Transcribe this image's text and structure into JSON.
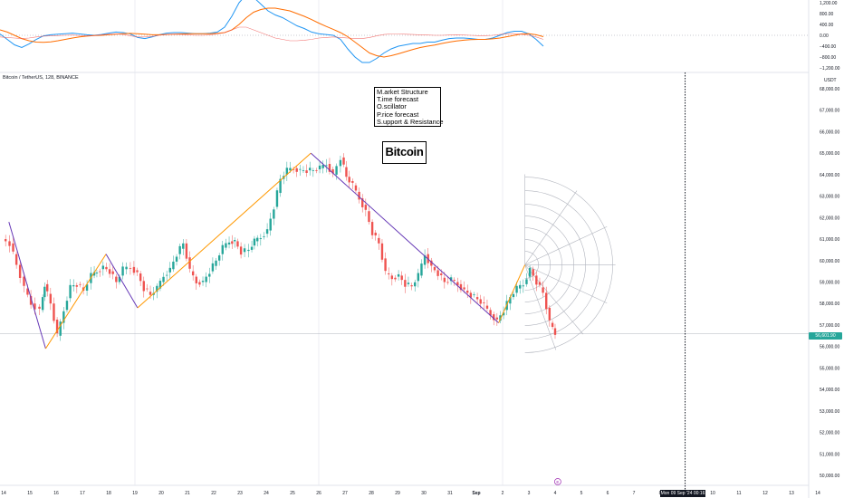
{
  "symbol_title": "Bitcoin / TetherUS, 128, BINANCE",
  "price_unit": "USDT",
  "notes": [
    "M.arket Structure",
    "T.ime forecast",
    "O.scillator",
    "P.rice forecast",
    "S.upport & Resistance"
  ],
  "title_box": "Bitcoin",
  "current_price_label": "56,601.90",
  "time_tag": "Mon 09 Sep '24  00:16",
  "event_marker": "E",
  "colors": {
    "up": "#26a69a",
    "down": "#ef5350",
    "macd": "#2196f3",
    "signal": "#ff6d00",
    "zigzag_up": "#ff9800",
    "zigzag_down": "#673ab7",
    "grid": "#e0e3eb",
    "fan": "#b2b5be",
    "text": "#131722",
    "hist": "#ef5350"
  },
  "chart_data": [
    {
      "type": "line",
      "y_ticks": [
        "1,200.00",
        "800.00",
        "400.00",
        "0.00",
        "−400.00",
        "−800.00",
        "−1,200.00"
      ],
      "y_tick_values": [
        1200,
        800,
        400,
        0,
        -400,
        -800,
        -1200
      ],
      "ylim": [
        -1350,
        1350
      ],
      "x": [
        0,
        8,
        16,
        24,
        32,
        40,
        48,
        56,
        64,
        72,
        80,
        88,
        96,
        104,
        112,
        120,
        128,
        136,
        144,
        152,
        160,
        168,
        176,
        184,
        192,
        200,
        208,
        216,
        224,
        232,
        240,
        248,
        256,
        264,
        272,
        280,
        288,
        296,
        304,
        312,
        320,
        328,
        336,
        344,
        352,
        360,
        368,
        376,
        384,
        392,
        400,
        408,
        416,
        424,
        432,
        440,
        448,
        456,
        464,
        472,
        480,
        488,
        496,
        504,
        512,
        520,
        528,
        536,
        544,
        552,
        560,
        568,
        576,
        584,
        592,
        600
      ],
      "series": [
        {
          "values": [
            50,
            -150,
            -350,
            -450,
            -320,
            -150,
            -20,
            20,
            40,
            60,
            80,
            50,
            20,
            0,
            30,
            80,
            120,
            100,
            50,
            -80,
            -120,
            -60,
            20,
            80,
            100,
            100,
            80,
            60,
            60,
            80,
            120,
            300,
            700,
            1200,
            1500,
            1400,
            1150,
            900,
            750,
            650,
            500,
            350,
            250,
            120,
            60,
            30,
            0,
            -150,
            -500,
            -800,
            -1000,
            -1000,
            -850,
            -650,
            -500,
            -400,
            -350,
            -300,
            -300,
            -250,
            -250,
            -180,
            -120,
            -100,
            -100,
            -120,
            -150,
            -150,
            -100,
            0,
            100,
            150,
            150,
            50,
            -150,
            -400
          ]
        },
        {
          "values": [
            200,
            120,
            0,
            -120,
            -200,
            -250,
            -260,
            -240,
            -200,
            -150,
            -100,
            -60,
            -30,
            -10,
            0,
            20,
            40,
            60,
            70,
            60,
            40,
            20,
            20,
            30,
            40,
            50,
            60,
            60,
            60,
            60,
            70,
            100,
            200,
            400,
            650,
            850,
            950,
            1000,
            1000,
            950,
            900,
            800,
            700,
            580,
            450,
            330,
            220,
            100,
            -50,
            -250,
            -450,
            -650,
            -750,
            -800,
            -750,
            -680,
            -600,
            -520,
            -450,
            -400,
            -360,
            -300,
            -250,
            -210,
            -180,
            -160,
            -150,
            -150,
            -130,
            -100,
            -50,
            0,
            50,
            60,
            20,
            -50
          ]
        },
        {
          "values": [
            -60,
            -80,
            -100,
            -120,
            -100,
            -60,
            -30,
            -20,
            -10,
            0,
            10,
            -10,
            -20,
            -10,
            20,
            40,
            50,
            30,
            -20,
            -60,
            -60,
            -40,
            0,
            30,
            40,
            30,
            20,
            0,
            0,
            20,
            50,
            100,
            200,
            300,
            300,
            200,
            100,
            0,
            -100,
            -150,
            -200,
            -200,
            -180,
            -150,
            -100,
            -80,
            -60,
            -80,
            -100,
            -120,
            -120,
            -80,
            -20,
            30,
            50,
            50,
            40,
            30,
            20,
            10,
            0,
            0,
            10,
            20,
            10,
            0,
            -10,
            -10,
            0,
            30,
            60,
            60,
            40,
            0,
            -60,
            -150
          ]
        }
      ]
    },
    {
      "type": "candlestick",
      "y_ticks": [
        "68,000.00",
        "67,000.00",
        "66,000.00",
        "65,000.00",
        "64,000.00",
        "63,000.00",
        "62,000.00",
        "61,000.00",
        "60,000.00",
        "59,000.00",
        "58,000.00",
        "57,000.00",
        "56,000.00",
        "55,000.00",
        "54,000.00",
        "53,000.00",
        "52,000.00",
        "51,000.00",
        "50,000.00"
      ],
      "y_tick_values": [
        68000,
        67000,
        66000,
        65000,
        64000,
        63000,
        62000,
        61000,
        60000,
        59000,
        58000,
        57000,
        56000,
        55000,
        54000,
        53000,
        52000,
        51000,
        50000
      ],
      "ylim": [
        49500,
        68600
      ],
      "x_ticks": [
        "14",
        "15",
        "16",
        "17",
        "18",
        "19",
        "20",
        "21",
        "22",
        "23",
        "24",
        "25",
        "26",
        "27",
        "28",
        "29",
        "30",
        "31",
        "Sep",
        "2",
        "3",
        "4",
        "5",
        "6",
        "7",
        "8",
        "9",
        "10",
        "11",
        "12",
        "13",
        "14"
      ],
      "x_tick_days": [
        0,
        1,
        2,
        3,
        4,
        5,
        6,
        7,
        8,
        9,
        10,
        11,
        12,
        13,
        14,
        15,
        16,
        17,
        18,
        19,
        20,
        21,
        22,
        23,
        24,
        25,
        26,
        27,
        28,
        29,
        30,
        31
      ],
      "close_path_days": [
        0,
        0.3,
        0.55,
        0.85,
        1.1,
        1.45,
        1.6,
        1.85,
        2.1,
        2.35,
        2.6,
        2.85,
        3.1,
        3.4,
        3.6,
        3.85,
        4.1,
        4.35,
        4.6,
        4.9,
        5.15,
        5.4,
        5.65,
        5.9,
        6.15,
        6.4,
        6.65,
        6.9,
        7.15,
        7.4,
        7.65,
        7.9,
        8.15,
        8.4,
        8.65,
        8.85,
        9.1,
        9.4,
        9.6,
        9.85,
        10.1,
        10.35,
        10.6,
        10.85,
        11.1,
        11.35,
        11.6,
        11.85,
        12.1,
        12.35,
        12.6,
        12.9,
        13.1,
        13.35,
        13.6,
        13.85,
        14.1,
        14.35,
        14.6,
        14.85,
        15.1,
        15.35,
        15.6,
        15.85,
        16.1,
        16.35,
        16.6,
        16.85,
        17.1,
        17.35,
        17.6,
        17.85,
        18.1,
        18.35,
        18.6,
        18.85,
        19.1,
        19.35,
        19.6,
        19.85,
        20.1,
        20.35,
        20.6,
        20.85,
        21.05
      ],
      "close_path": [
        61000,
        60800,
        59800,
        58700,
        58000,
        57700,
        58900,
        58000,
        56500,
        57700,
        58800,
        58900,
        58600,
        59300,
        59500,
        59700,
        59500,
        59000,
        59600,
        59700,
        59400,
        58700,
        58400,
        58700,
        59300,
        59600,
        60300,
        60800,
        59500,
        59000,
        59000,
        59500,
        60000,
        60600,
        60900,
        60900,
        60400,
        60500,
        60900,
        61100,
        61400,
        62500,
        63800,
        64200,
        64300,
        64200,
        64200,
        64200,
        64300,
        64500,
        64000,
        64800,
        63900,
        63500,
        62900,
        62300,
        61300,
        60800,
        59400,
        59200,
        59300,
        58900,
        58800,
        59300,
        60300,
        59700,
        59400,
        59000,
        59100,
        58900,
        58600,
        58400,
        58200,
        57900,
        57500,
        57200,
        57700,
        58300,
        58700,
        58900,
        59600,
        59000,
        58500,
        57100,
        56600
      ],
      "zigzag_days": [
        0.2,
        1.6,
        3.9,
        5.1,
        11.7,
        18.85,
        19.85
      ],
      "zigzag_prices": [
        61800,
        55900,
        60300,
        57800,
        65000,
        57100,
        59800
      ],
      "current_price": 56601.9,
      "forecast_day": 25.95
    }
  ]
}
